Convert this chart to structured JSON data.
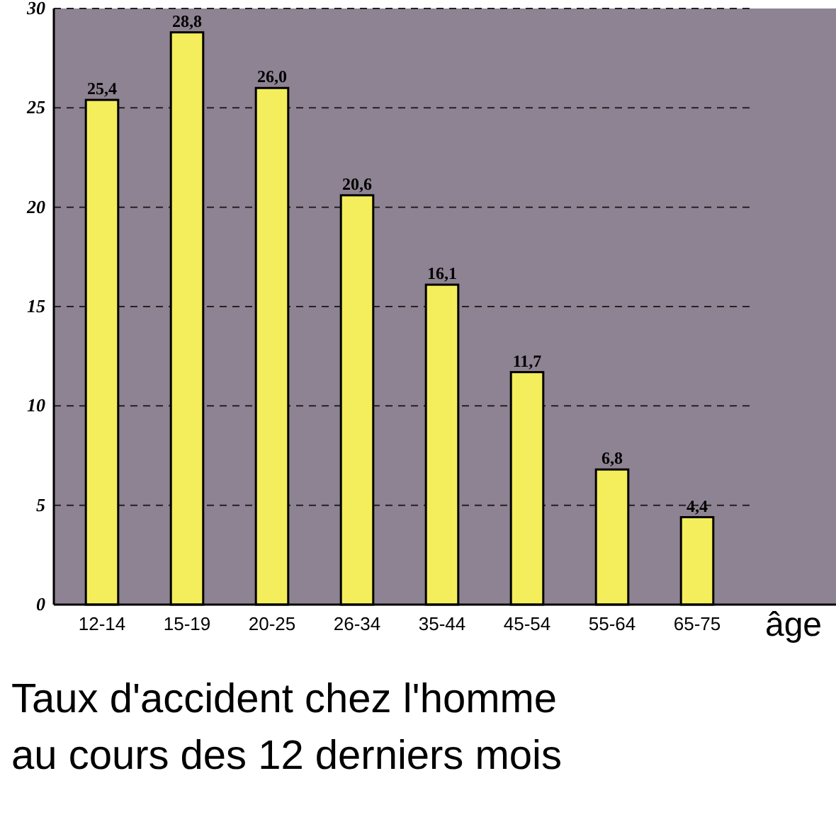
{
  "chart_data": {
    "type": "bar",
    "title": "Taux d'accident chez l'homme\nau cours des 12 derniers mois",
    "xlabel": "âge",
    "categories": [
      "12-14",
      "15-19",
      "20-25",
      "26-34",
      "35-44",
      "45-54",
      "55-64",
      "65-75"
    ],
    "values": [
      25.4,
      28.8,
      26.0,
      20.6,
      16.1,
      11.7,
      6.8,
      4.4
    ],
    "value_labels": [
      "25,4",
      "28,8",
      "26,0",
      "20,6",
      "16,1",
      "11,7",
      "6,8",
      "4,4"
    ],
    "color": "#f4ee5c",
    "ylim": [
      0,
      30
    ],
    "yticks": [
      0,
      5,
      10,
      15,
      20,
      25,
      30
    ],
    "grid": "y"
  }
}
